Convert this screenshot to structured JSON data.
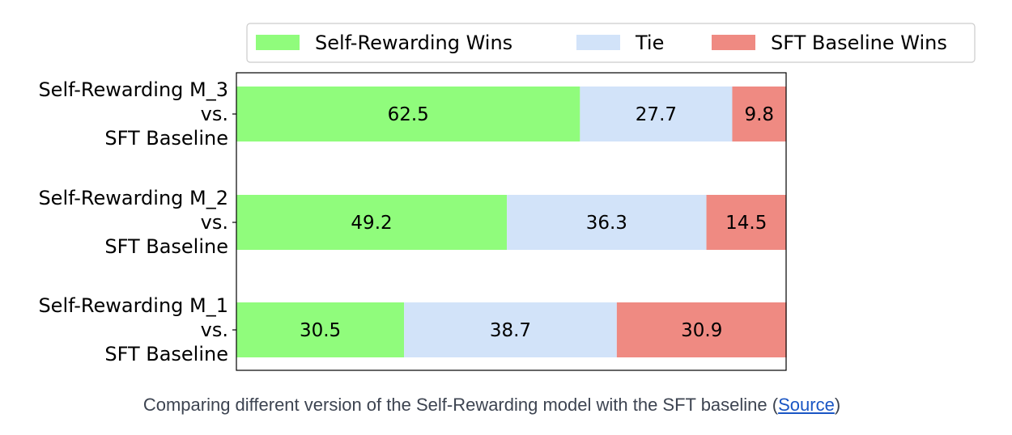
{
  "chart_data": {
    "type": "bar",
    "orientation": "horizontal",
    "stacked": true,
    "title": "",
    "xlabel": "",
    "ylabel": "",
    "xlim": [
      0,
      100
    ],
    "grid": false,
    "legend_position": "top",
    "categories": [
      "Self-Rewarding M_3 vs. SFT Baseline",
      "Self-Rewarding M_2 vs. SFT Baseline",
      "Self-Rewarding M_1 vs. SFT Baseline"
    ],
    "category_lines": [
      [
        "Self-Rewarding M_3",
        "vs.",
        "SFT Baseline"
      ],
      [
        "Self-Rewarding M_2",
        "vs.",
        "SFT Baseline"
      ],
      [
        "Self-Rewarding M_1",
        "vs.",
        "SFT Baseline"
      ]
    ],
    "series": [
      {
        "name": "Self-Rewarding Wins",
        "color": "#90fc7c",
        "values": [
          62.5,
          49.2,
          30.5
        ]
      },
      {
        "name": "Tie",
        "color": "#d2e3f9",
        "values": [
          27.7,
          36.3,
          38.7
        ]
      },
      {
        "name": "SFT Baseline Wins",
        "color": "#ef8a82",
        "values": [
          9.8,
          14.5,
          30.9
        ]
      }
    ]
  },
  "caption": {
    "text": "Comparing different version of the Self-Rewarding model with the SFT baseline (",
    "link_text": "Source",
    "suffix": ")"
  }
}
